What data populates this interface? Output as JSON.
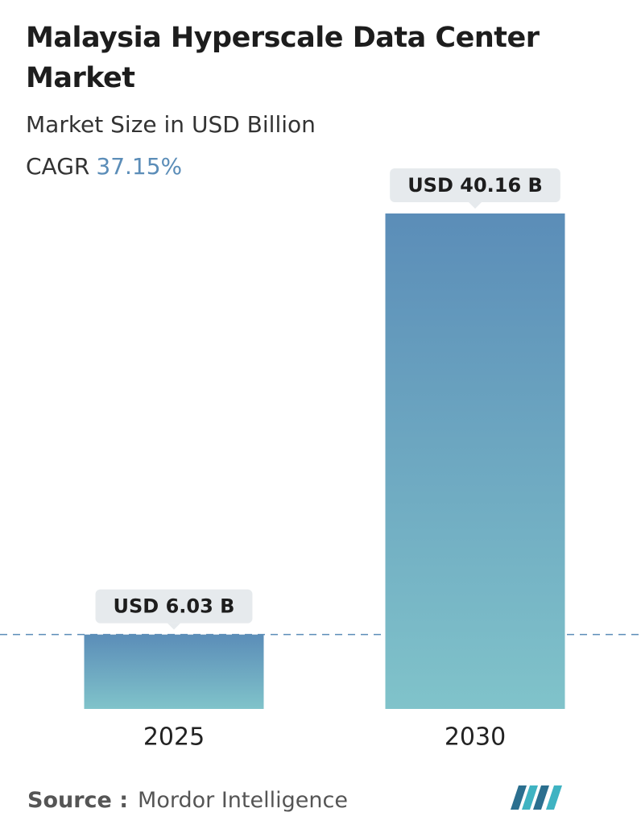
{
  "chart_data": {
    "type": "bar",
    "title": "Malaysia Hyperscale Data Center Market",
    "subtitle": "Market Size in USD Billion",
    "cagr_label": "CAGR",
    "cagr": "37.15%",
    "categories": [
      "2025",
      "2030"
    ],
    "values": [
      6.03,
      40.16
    ],
    "value_labels": [
      "USD 6.03 B",
      "USD 40.16 B"
    ],
    "color": [
      "#5b8db8",
      "#80c3ca"
    ],
    "source_label": "Source :",
    "source": "Mordor Intelligence"
  }
}
